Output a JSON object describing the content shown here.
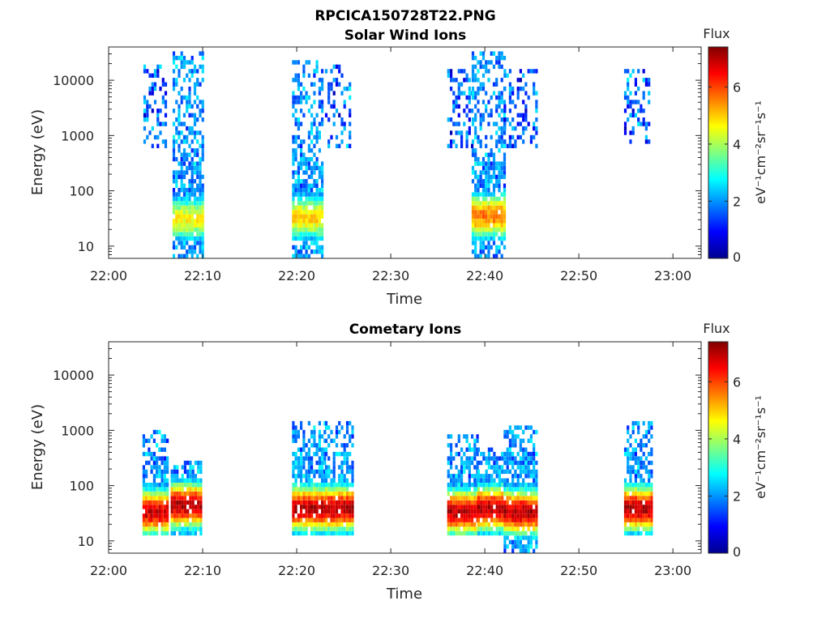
{
  "figure": {
    "title": "RPCICA150728T22.PNG"
  },
  "colormap": "jet",
  "chart_data": [
    {
      "type": "heatmap",
      "title": "Solar Wind Ions",
      "xlabel": "Time",
      "ylabel": "Energy (eV)",
      "x_range_minutes_after_22_00": [
        0,
        63
      ],
      "x_ticks": [
        "22:00",
        "22:10",
        "22:20",
        "22:30",
        "22:40",
        "22:50",
        "23:00"
      ],
      "y_scale": "log",
      "y_range_eV": [
        6,
        40000
      ],
      "y_ticks": [
        "10",
        "100",
        "1000",
        "10000"
      ],
      "colorbar": {
        "title": "Flux",
        "label": "eV⁻¹cm⁻²sr⁻¹s⁻¹",
        "range": [
          0,
          7.4
        ],
        "ticks": [
          "0",
          "2",
          "4",
          "6"
        ]
      },
      "bursts": [
        {
          "t_start": 3.7,
          "t_end": 6.2,
          "peak_energy_eV": null,
          "peak_flux": 1.8,
          "max_energy_eV": 20000,
          "min_energy_eV": 600
        },
        {
          "t_start": 6.8,
          "t_end": 10.0,
          "peak_energy_eV": 28,
          "peak_flux": 4.6,
          "max_energy_eV": 35000,
          "min_energy_eV": 6
        },
        {
          "t_start": 19.5,
          "t_end": 22.8,
          "peak_energy_eV": 30,
          "peak_flux": 4.9,
          "max_energy_eV": 25000,
          "min_energy_eV": 6
        },
        {
          "t_start": 23.0,
          "t_end": 25.8,
          "peak_energy_eV": null,
          "peak_flux": 1.8,
          "max_energy_eV": 20000,
          "min_energy_eV": 600
        },
        {
          "t_start": 36.0,
          "t_end": 38.6,
          "peak_energy_eV": null,
          "peak_flux": 1.8,
          "max_energy_eV": 15000,
          "min_energy_eV": 600
        },
        {
          "t_start": 38.6,
          "t_end": 42.0,
          "peak_energy_eV": 32,
          "peak_flux": 5.6,
          "max_energy_eV": 35000,
          "min_energy_eV": 6
        },
        {
          "t_start": 42.0,
          "t_end": 45.5,
          "peak_energy_eV": null,
          "peak_flux": 1.8,
          "max_energy_eV": 15000,
          "min_energy_eV": 600
        },
        {
          "t_start": 54.8,
          "t_end": 57.6,
          "peak_energy_eV": null,
          "peak_flux": 1.8,
          "max_energy_eV": 15000,
          "min_energy_eV": 700
        }
      ]
    },
    {
      "type": "heatmap",
      "title": "Cometary Ions",
      "xlabel": "Time",
      "ylabel": "Energy (eV)",
      "x_range_minutes_after_22_00": [
        0,
        63
      ],
      "x_ticks": [
        "22:00",
        "22:10",
        "22:20",
        "22:30",
        "22:40",
        "22:50",
        "23:00"
      ],
      "y_scale": "log",
      "y_range_eV": [
        6,
        40000
      ],
      "y_ticks": [
        "10",
        "100",
        "1000",
        "10000"
      ],
      "colorbar": {
        "title": "Flux",
        "label": "eV⁻¹cm⁻²sr⁻¹s⁻¹",
        "range": [
          0,
          7.4
        ],
        "ticks": [
          "0",
          "2",
          "4",
          "6"
        ]
      },
      "bursts": [
        {
          "t_start": 3.6,
          "t_end": 6.4,
          "peak_energy_eV": 30,
          "peak_flux": 6.8,
          "max_energy_eV": 1000,
          "min_energy_eV": 12
        },
        {
          "t_start": 6.6,
          "t_end": 9.8,
          "peak_energy_eV": 40,
          "peak_flux": 7.0,
          "max_energy_eV": 300,
          "min_energy_eV": 12
        },
        {
          "t_start": 19.5,
          "t_end": 23.0,
          "peak_energy_eV": 35,
          "peak_flux": 7.0,
          "max_energy_eV": 1500,
          "min_energy_eV": 12
        },
        {
          "t_start": 23.0,
          "t_end": 26.0,
          "peak_energy_eV": 35,
          "peak_flux": 7.0,
          "max_energy_eV": 1500,
          "min_energy_eV": 12
        },
        {
          "t_start": 36.0,
          "t_end": 39.2,
          "peak_energy_eV": 30,
          "peak_flux": 7.0,
          "max_energy_eV": 800,
          "min_energy_eV": 12
        },
        {
          "t_start": 39.2,
          "t_end": 42.0,
          "peak_energy_eV": 35,
          "peak_flux": 7.0,
          "max_energy_eV": 500,
          "min_energy_eV": 12
        },
        {
          "t_start": 42.0,
          "t_end": 45.5,
          "peak_energy_eV": 30,
          "peak_flux": 7.0,
          "max_energy_eV": 1300,
          "min_energy_eV": 6
        },
        {
          "t_start": 54.8,
          "t_end": 57.8,
          "peak_energy_eV": 35,
          "peak_flux": 7.0,
          "max_energy_eV": 1400,
          "min_energy_eV": 12
        }
      ]
    }
  ]
}
